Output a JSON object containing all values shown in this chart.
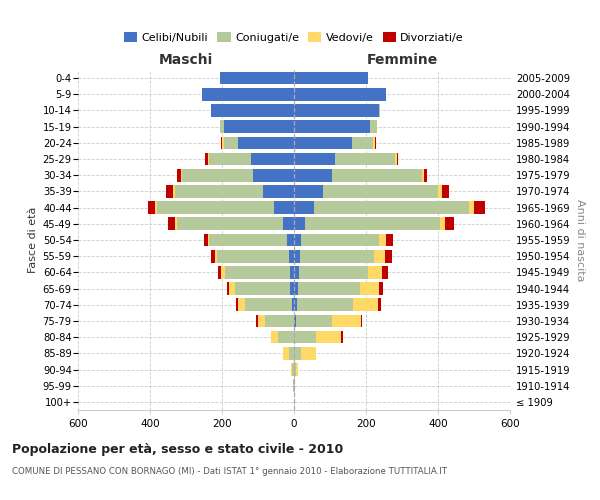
{
  "age_groups": [
    "100+",
    "95-99",
    "90-94",
    "85-89",
    "80-84",
    "75-79",
    "70-74",
    "65-69",
    "60-64",
    "55-59",
    "50-54",
    "45-49",
    "40-44",
    "35-39",
    "30-34",
    "25-29",
    "20-24",
    "15-19",
    "10-14",
    "5-9",
    "0-4"
  ],
  "birth_years": [
    "≤ 1909",
    "1910-1914",
    "1915-1919",
    "1920-1924",
    "1925-1929",
    "1930-1934",
    "1935-1939",
    "1940-1944",
    "1945-1949",
    "1950-1954",
    "1955-1959",
    "1960-1964",
    "1965-1969",
    "1970-1974",
    "1975-1979",
    "1980-1984",
    "1985-1989",
    "1990-1994",
    "1995-1999",
    "2000-2004",
    "2005-2009"
  ],
  "males": {
    "celibi": [
      0,
      0,
      0,
      0,
      0,
      0,
      5,
      10,
      12,
      15,
      20,
      30,
      55,
      85,
      115,
      120,
      155,
      195,
      230,
      255,
      205
    ],
    "coniugati": [
      0,
      2,
      5,
      15,
      45,
      80,
      130,
      155,
      180,
      200,
      215,
      295,
      325,
      245,
      195,
      115,
      40,
      10,
      0,
      0,
      0
    ],
    "vedovi": [
      0,
      1,
      3,
      15,
      20,
      20,
      20,
      15,
      10,
      5,
      5,
      5,
      5,
      5,
      5,
      5,
      5,
      0,
      0,
      0,
      0
    ],
    "divorziati": [
      0,
      0,
      0,
      0,
      0,
      5,
      5,
      5,
      8,
      10,
      10,
      20,
      20,
      20,
      10,
      8,
      2,
      0,
      0,
      0,
      0
    ]
  },
  "females": {
    "nubili": [
      0,
      0,
      0,
      0,
      0,
      5,
      8,
      12,
      15,
      18,
      20,
      30,
      55,
      80,
      105,
      115,
      160,
      210,
      235,
      255,
      205
    ],
    "coniugate": [
      0,
      2,
      5,
      20,
      60,
      100,
      155,
      170,
      190,
      205,
      215,
      375,
      430,
      320,
      250,
      165,
      60,
      20,
      5,
      0,
      0
    ],
    "vedove": [
      0,
      2,
      5,
      40,
      70,
      80,
      70,
      55,
      40,
      30,
      20,
      15,
      15,
      10,
      5,
      5,
      5,
      0,
      0,
      0,
      0
    ],
    "divorziate": [
      0,
      0,
      0,
      0,
      5,
      5,
      10,
      10,
      15,
      20,
      20,
      25,
      30,
      20,
      10,
      5,
      2,
      0,
      0,
      0,
      0
    ]
  },
  "colors": {
    "celibi": "#4472c4",
    "coniugati": "#b5c99a",
    "vedovi": "#ffd966",
    "divorziati": "#c00000"
  },
  "xlim": 600,
  "title": "Popolazione per età, sesso e stato civile - 2010",
  "subtitle": "COMUNE DI PESSANO CON BORNAGO (MI) - Dati ISTAT 1° gennaio 2010 - Elaborazione TUTTITALIA.IT",
  "legend_labels": [
    "Celibi/Nubili",
    "Coniugati/e",
    "Vedovi/e",
    "Divorziati/e"
  ],
  "ylabel_left": "Fasce di età",
  "ylabel_right": "Anni di nascita",
  "xlabel_left": "Maschi",
  "xlabel_right": "Femmine",
  "bg_color": "#ffffff"
}
